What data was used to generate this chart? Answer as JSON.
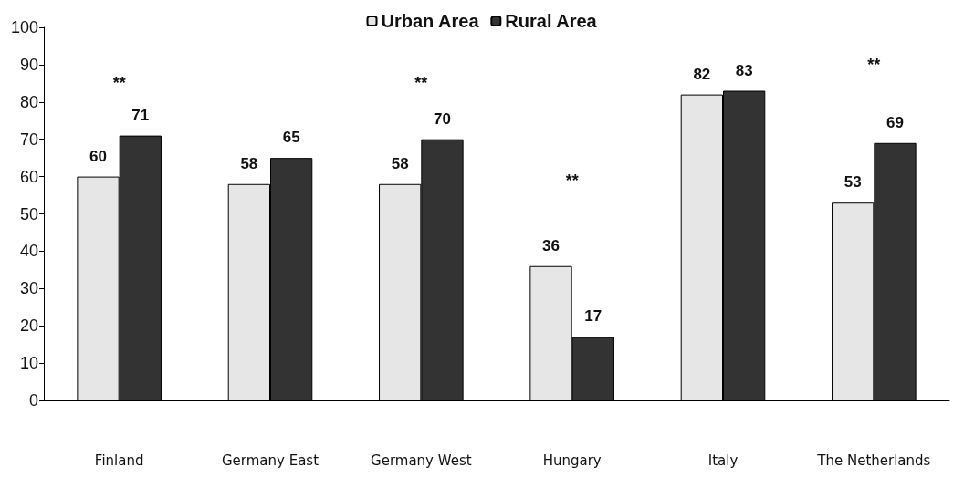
{
  "chart_data": {
    "type": "bar",
    "categories": [
      "Finland",
      "Germany East",
      "Germany West",
      "Hungary",
      "Italy",
      "The Netherlands"
    ],
    "series": [
      {
        "name": "Urban Area",
        "color": "#e6e6e6",
        "values": [
          60,
          58,
          58,
          36,
          82,
          53
        ]
      },
      {
        "name": "Rural Area",
        "color": "#333333",
        "values": [
          71,
          65,
          70,
          17,
          83,
          69
        ]
      }
    ],
    "ylim": [
      0,
      100
    ],
    "yticks": [
      0,
      10,
      20,
      30,
      40,
      50,
      60,
      70,
      80,
      90,
      100
    ],
    "grid": false,
    "legend": "top",
    "data_labels": true,
    "annotations": [
      "**",
      "**",
      "**",
      "**"
    ]
  }
}
